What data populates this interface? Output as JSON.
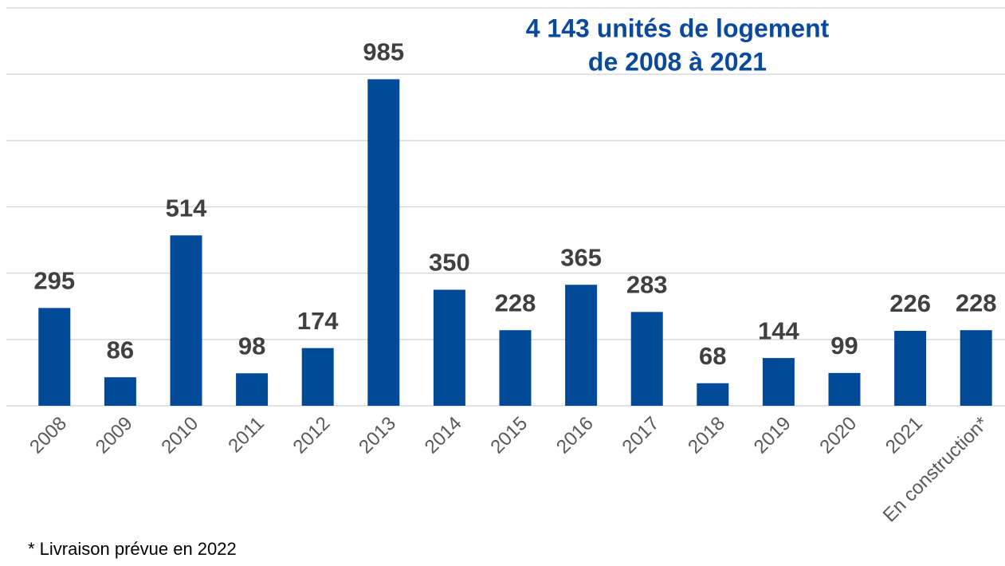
{
  "chart_data": {
    "type": "bar",
    "annotation": [
      "4 143 unités de logement",
      "de 2008 à 2021"
    ],
    "footnote": "* Livraison prévue en 2022",
    "categories": [
      "2008",
      "2009",
      "2010",
      "2011",
      "2012",
      "2013",
      "2014",
      "2015",
      "2016",
      "2017",
      "2018",
      "2019",
      "2020",
      "2021",
      "En construction*"
    ],
    "values": [
      295,
      86,
      514,
      98,
      174,
      985,
      350,
      228,
      365,
      283,
      68,
      144,
      99,
      226,
      228
    ],
    "color": "#004a97",
    "ylim": [
      0,
      1200
    ],
    "yticks": [
      0,
      200,
      400,
      600,
      800,
      1000,
      1200
    ],
    "grid": true
  }
}
